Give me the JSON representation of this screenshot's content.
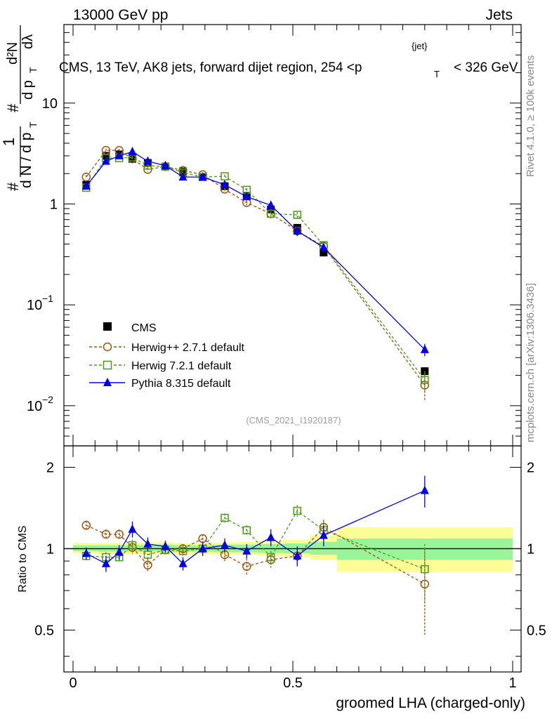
{
  "header": {
    "left": "13000 GeV pp",
    "right": "Jets"
  },
  "side_labels": {
    "rivet": "Rivet 4.1.0, ≥ 100k events",
    "mcplots": "mcplots.cern.ch [arXiv:1306.3436]"
  },
  "y_axis_title": {
    "hash": "#",
    "one": "1",
    "dn": "d N / d p",
    "t": "T",
    "d2n": "d²N",
    "dpt_dlambda": "d p",
    "dlambda": "dλ"
  },
  "chart_data": [
    {
      "type": "line",
      "role": "main",
      "title": "CMS, 13 TeV, AK8 jets, forward dijet region, 254 <p",
      "title_sup": "{jet}",
      "title_sub": "T",
      "title_end": "< 326 GeV",
      "watermark": "(CMS_2021_I1920187)",
      "xlabel": "groomed LHA (charged-only)",
      "xlim": [
        0,
        1
      ],
      "ylim": [
        0.004,
        60
      ],
      "yscale": "log",
      "yticks": [
        {
          "value": 0.01,
          "base": "10",
          "exp": "−2"
        },
        {
          "value": 0.1,
          "base": "10",
          "exp": "−1"
        },
        {
          "value": 1,
          "label": "1"
        },
        {
          "value": 10,
          "label": "10"
        }
      ],
      "legend_position": "center-left",
      "legend": [
        "CMS",
        "Herwig++ 2.7.1 default",
        "Herwig 7.2.1 default",
        "Pythia 8.315 default"
      ],
      "series": [
        {
          "name": "CMS",
          "marker": "square-filled",
          "color": "#000000",
          "x": [
            0.03,
            0.075,
            0.105,
            0.135,
            0.17,
            0.21,
            0.25,
            0.295,
            0.345,
            0.395,
            0.45,
            0.51,
            0.57,
            0.8
          ],
          "y": [
            1.55,
            3.0,
            3.1,
            2.8,
            2.55,
            2.35,
            2.1,
            1.85,
            1.5,
            1.2,
            0.88,
            0.58,
            0.33,
            0.022
          ],
          "err": [
            0.05,
            0.1,
            0.1,
            0.1,
            0.08,
            0.08,
            0.07,
            0.06,
            0.05,
            0.04,
            0.03,
            0.03,
            0.02,
            0.001
          ]
        },
        {
          "name": "Herwig++ 2.7.1 default",
          "marker": "circle-open",
          "color": "#a0520a",
          "x": [
            0.03,
            0.075,
            0.105,
            0.135,
            0.17,
            0.21,
            0.25,
            0.295,
            0.345,
            0.395,
            0.45,
            0.51,
            0.57,
            0.8
          ],
          "y": [
            1.85,
            3.4,
            3.4,
            2.8,
            2.2,
            2.35,
            2.15,
            1.95,
            1.4,
            1.03,
            0.8,
            0.54,
            0.38,
            0.016
          ],
          "err": [
            0.08,
            0.12,
            0.12,
            0.1,
            0.1,
            0.1,
            0.1,
            0.08,
            0.07,
            0.06,
            0.05,
            0.04,
            0.03,
            0.005
          ]
        },
        {
          "name": "Herwig 7.2.1 default",
          "marker": "square-open",
          "color": "#4a9a1a",
          "x": [
            0.03,
            0.075,
            0.105,
            0.135,
            0.17,
            0.21,
            0.25,
            0.295,
            0.345,
            0.395,
            0.45,
            0.51,
            0.57,
            0.8
          ],
          "y": [
            1.45,
            2.85,
            2.85,
            2.9,
            2.4,
            2.35,
            2.05,
            1.85,
            1.88,
            1.38,
            0.8,
            0.78,
            0.39,
            0.018
          ],
          "err": [
            0.06,
            0.1,
            0.1,
            0.1,
            0.1,
            0.1,
            0.08,
            0.08,
            0.08,
            0.06,
            0.05,
            0.05,
            0.03,
            0.004
          ]
        },
        {
          "name": "Pythia 8.315 default",
          "marker": "triangle-filled",
          "color": "#0000ee",
          "x": [
            0.03,
            0.075,
            0.105,
            0.135,
            0.17,
            0.21,
            0.25,
            0.295,
            0.345,
            0.395,
            0.45,
            0.51,
            0.57,
            0.8
          ],
          "y": [
            1.5,
            2.65,
            3.0,
            3.3,
            2.65,
            2.4,
            1.85,
            1.85,
            1.55,
            1.18,
            0.97,
            0.54,
            0.37,
            0.036
          ],
          "err": [
            0.06,
            0.12,
            0.15,
            0.18,
            0.12,
            0.1,
            0.1,
            0.1,
            0.08,
            0.07,
            0.09,
            0.06,
            0.04,
            0.005
          ]
        }
      ]
    },
    {
      "type": "line",
      "role": "ratio",
      "xlabel": "groomed LHA (charged-only)",
      "ylabel": "Ratio to CMS",
      "xlim": [
        0,
        1
      ],
      "ylim": [
        0.35,
        2.4
      ],
      "yscale": "log",
      "xticks": [
        {
          "value": 0,
          "label": "0"
        },
        {
          "value": 0.5,
          "label": "0.5"
        },
        {
          "value": 1,
          "label": "1"
        }
      ],
      "yticks": [
        {
          "value": 0.5,
          "label": "0.5"
        },
        {
          "value": 1,
          "label": "1"
        },
        {
          "value": 2,
          "label": "2"
        }
      ],
      "bands": [
        {
          "x0": 0.0,
          "x1": 0.055,
          "inner": [
            0.98,
            1.03
          ],
          "outer": [
            0.96,
            1.05
          ]
        },
        {
          "x0": 0.055,
          "x1": 0.09,
          "inner": [
            0.975,
            1.03
          ],
          "outer": [
            0.955,
            1.05
          ]
        },
        {
          "x0": 0.09,
          "x1": 0.12,
          "inner": [
            0.975,
            1.03
          ],
          "outer": [
            0.955,
            1.05
          ]
        },
        {
          "x0": 0.12,
          "x1": 0.15,
          "inner": [
            0.975,
            1.03
          ],
          "outer": [
            0.955,
            1.05
          ]
        },
        {
          "x0": 0.15,
          "x1": 0.19,
          "inner": [
            0.975,
            1.03
          ],
          "outer": [
            0.955,
            1.055
          ]
        },
        {
          "x0": 0.19,
          "x1": 0.23,
          "inner": [
            0.97,
            1.035
          ],
          "outer": [
            0.95,
            1.06
          ]
        },
        {
          "x0": 0.23,
          "x1": 0.27,
          "inner": [
            0.975,
            1.03
          ],
          "outer": [
            0.955,
            1.05
          ]
        },
        {
          "x0": 0.27,
          "x1": 0.32,
          "inner": [
            0.975,
            1.03
          ],
          "outer": [
            0.955,
            1.05
          ]
        },
        {
          "x0": 0.32,
          "x1": 0.37,
          "inner": [
            0.97,
            1.035
          ],
          "outer": [
            0.955,
            1.055
          ]
        },
        {
          "x0": 0.37,
          "x1": 0.42,
          "inner": [
            0.97,
            1.035
          ],
          "outer": [
            0.95,
            1.06
          ]
        },
        {
          "x0": 0.42,
          "x1": 0.48,
          "inner": [
            0.965,
            1.04
          ],
          "outer": [
            0.94,
            1.07
          ]
        },
        {
          "x0": 0.48,
          "x1": 0.54,
          "inner": [
            0.96,
            1.045
          ],
          "outer": [
            0.93,
            1.08
          ]
        },
        {
          "x0": 0.54,
          "x1": 0.6,
          "inner": [
            0.95,
            1.06
          ],
          "outer": [
            0.91,
            1.12
          ]
        },
        {
          "x0": 0.6,
          "x1": 1.0,
          "inner": [
            0.91,
            1.09
          ],
          "outer": [
            0.82,
            1.2
          ]
        }
      ],
      "series": [
        {
          "name": "Herwig++ 2.7.1 default",
          "marker": "circle-open",
          "color": "#a0520a",
          "x": [
            0.03,
            0.075,
            0.105,
            0.135,
            0.17,
            0.21,
            0.25,
            0.295,
            0.345,
            0.395,
            0.45,
            0.51,
            0.57,
            0.8
          ],
          "y": [
            1.22,
            1.13,
            1.13,
            1.01,
            0.87,
            0.99,
            1.0,
            1.09,
            0.95,
            0.86,
            0.91,
            0.94,
            1.2,
            0.74
          ],
          "err": [
            0.05,
            0.05,
            0.05,
            0.05,
            0.05,
            0.04,
            0.04,
            0.04,
            0.05,
            0.06,
            0.06,
            0.06,
            0.08,
            0.26
          ]
        },
        {
          "name": "Herwig 7.2.1 default",
          "marker": "square-open",
          "color": "#4a9a1a",
          "x": [
            0.03,
            0.075,
            0.105,
            0.135,
            0.17,
            0.21,
            0.25,
            0.295,
            0.345,
            0.395,
            0.45,
            0.51,
            0.57,
            0.8
          ],
          "y": [
            0.94,
            0.93,
            0.93,
            1.03,
            0.95,
            0.99,
            0.98,
            1.0,
            1.3,
            1.17,
            0.93,
            1.38,
            1.17,
            0.84
          ],
          "err": [
            0.04,
            0.04,
            0.04,
            0.05,
            0.04,
            0.04,
            0.04,
            0.04,
            0.05,
            0.05,
            0.05,
            0.07,
            0.09,
            0.2
          ]
        },
        {
          "name": "Pythia 8.315 default",
          "marker": "triangle-filled",
          "color": "#0000ee",
          "x": [
            0.03,
            0.075,
            0.105,
            0.135,
            0.17,
            0.21,
            0.25,
            0.295,
            0.345,
            0.395,
            0.45,
            0.51,
            0.57,
            0.8
          ],
          "y": [
            0.96,
            0.88,
            0.97,
            1.18,
            1.04,
            1.02,
            0.88,
            1.0,
            1.03,
            0.98,
            1.1,
            0.94,
            1.12,
            1.64
          ],
          "err": [
            0.05,
            0.06,
            0.06,
            0.08,
            0.06,
            0.05,
            0.05,
            0.06,
            0.06,
            0.06,
            0.08,
            0.08,
            0.1,
            0.22
          ]
        }
      ]
    }
  ]
}
